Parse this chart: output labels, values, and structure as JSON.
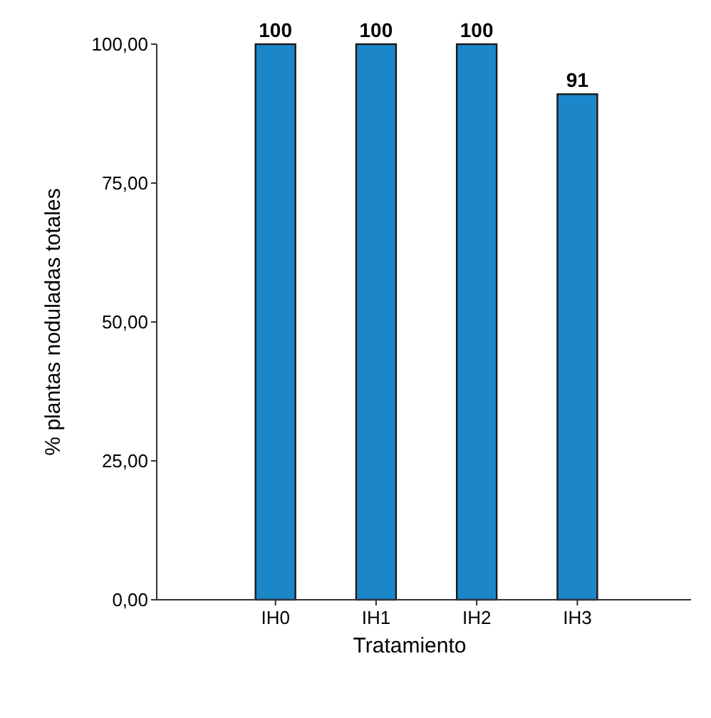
{
  "chart_data": {
    "type": "bar",
    "categories": [
      "IH0",
      "IH1",
      "IH2",
      "IH3"
    ],
    "values": [
      100,
      100,
      100,
      91
    ],
    "color": "#1b87c9",
    "ylim": [
      0,
      100
    ],
    "yticks": [
      {
        "value": 0,
        "label": "0,00"
      },
      {
        "value": 25,
        "label": "25,00"
      },
      {
        "value": 50,
        "label": "50,00"
      },
      {
        "value": 75,
        "label": "75,00"
      },
      {
        "value": 100,
        "label": "100,00"
      }
    ],
    "xlabel": "Tratamiento",
    "ylabel": "% plantas noduladas totales",
    "data_labels": true,
    "grid": false
  }
}
